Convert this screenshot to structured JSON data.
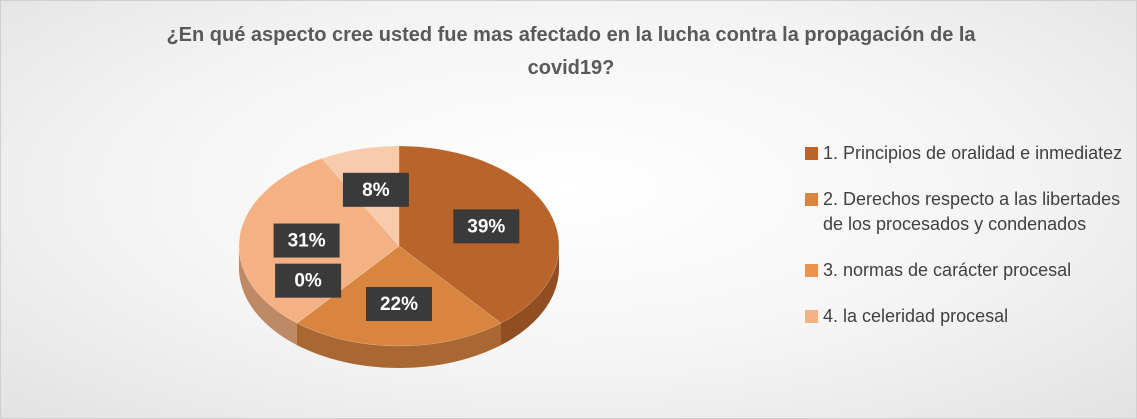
{
  "chart_data": {
    "type": "pie",
    "title": "¿En qué aspecto cree usted fue mas afectado en la lucha contra la propagación de la covid19?",
    "categories": [
      "1. Principios de oralidad e inmediatez",
      "2. Derechos respecto a las libertades de los procesados y condenados",
      "3. normas de carácter procesal",
      "4. la celeridad procesal",
      null
    ],
    "values": [
      39,
      22,
      0,
      31,
      8
    ],
    "value_labels": [
      "39%",
      "22%",
      "0%",
      "31%",
      "8%"
    ],
    "colors": [
      "#b9642b",
      "#d9843f",
      "#e8934f",
      "#f4b183",
      "#f8cbad"
    ],
    "legend": "right"
  }
}
